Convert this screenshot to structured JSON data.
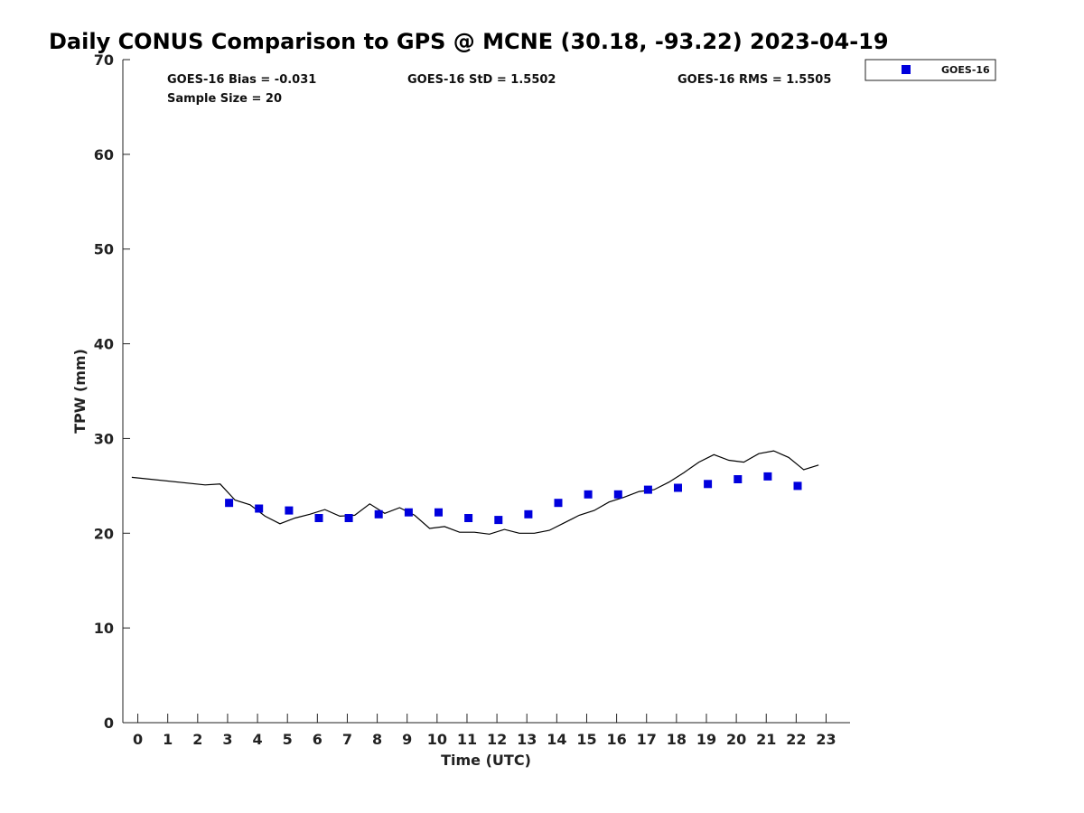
{
  "chart_data": {
    "type": "scatter",
    "title": "Daily CONUS Comparison to GPS @ MCNE (30.18, -93.22) 2023-04-19",
    "xlabel": "Time (UTC)",
    "ylabel": "TPW (mm)",
    "xlim": [
      -0.5,
      23.8
    ],
    "ylim": [
      0,
      70
    ],
    "x_ticks": [
      0,
      1,
      2,
      3,
      4,
      5,
      6,
      7,
      8,
      9,
      10,
      11,
      12,
      13,
      14,
      15,
      16,
      17,
      18,
      19,
      20,
      21,
      22,
      23
    ],
    "y_ticks": [
      0,
      10,
      20,
      30,
      40,
      50,
      60,
      70
    ],
    "grid": false,
    "legend_position": "top-right",
    "stats": {
      "bias": "GOES-16 Bias = -0.031",
      "std": "GOES-16 StD = 1.5502",
      "rms": "GOES-16 RMS = 1.5505",
      "sample": "Sample Size = 20"
    },
    "series": [
      {
        "name": "GOES-16",
        "kind": "scatter",
        "marker": "square",
        "color": "#0000dd",
        "points": [
          [
            3.05,
            23.2
          ],
          [
            4.05,
            22.6
          ],
          [
            5.05,
            22.4
          ],
          [
            6.05,
            21.6
          ],
          [
            7.05,
            21.6
          ],
          [
            8.05,
            22.0
          ],
          [
            9.05,
            22.2
          ],
          [
            10.05,
            22.2
          ],
          [
            11.05,
            21.6
          ],
          [
            12.05,
            21.4
          ],
          [
            13.05,
            22.0
          ],
          [
            14.05,
            23.2
          ],
          [
            15.05,
            24.1
          ],
          [
            16.05,
            24.1
          ],
          [
            17.05,
            24.6
          ],
          [
            18.05,
            24.8
          ],
          [
            19.05,
            25.2
          ],
          [
            20.05,
            25.7
          ],
          [
            21.05,
            26.0
          ],
          [
            22.05,
            25.0
          ]
        ]
      },
      {
        "kind": "line",
        "color": "#000000",
        "points": [
          [
            -0.2,
            25.9
          ],
          [
            2.25,
            25.1
          ],
          [
            2.75,
            25.2
          ],
          [
            3.25,
            23.5
          ],
          [
            3.75,
            23.0
          ],
          [
            4.25,
            21.8
          ],
          [
            4.75,
            21.0
          ],
          [
            5.25,
            21.6
          ],
          [
            5.75,
            22.0
          ],
          [
            6.25,
            22.5
          ],
          [
            6.75,
            21.8
          ],
          [
            7.25,
            21.9
          ],
          [
            7.75,
            23.1
          ],
          [
            8.25,
            22.1
          ],
          [
            8.75,
            22.7
          ],
          [
            9.25,
            21.9
          ],
          [
            9.75,
            20.5
          ],
          [
            10.25,
            20.7
          ],
          [
            10.75,
            20.1
          ],
          [
            11.25,
            20.1
          ],
          [
            11.75,
            19.9
          ],
          [
            12.25,
            20.4
          ],
          [
            12.75,
            20.0
          ],
          [
            13.25,
            20.0
          ],
          [
            13.75,
            20.3
          ],
          [
            14.25,
            21.1
          ],
          [
            14.75,
            21.9
          ],
          [
            15.25,
            22.4
          ],
          [
            15.75,
            23.3
          ],
          [
            16.25,
            23.8
          ],
          [
            16.75,
            24.4
          ],
          [
            17.25,
            24.6
          ],
          [
            17.75,
            25.4
          ],
          [
            18.25,
            26.4
          ],
          [
            18.75,
            27.5
          ],
          [
            19.25,
            28.3
          ],
          [
            19.75,
            27.7
          ],
          [
            20.25,
            27.5
          ],
          [
            20.75,
            28.4
          ],
          [
            21.25,
            28.7
          ],
          [
            21.75,
            28.0
          ],
          [
            22.25,
            26.7
          ],
          [
            22.75,
            27.2
          ]
        ]
      }
    ]
  }
}
